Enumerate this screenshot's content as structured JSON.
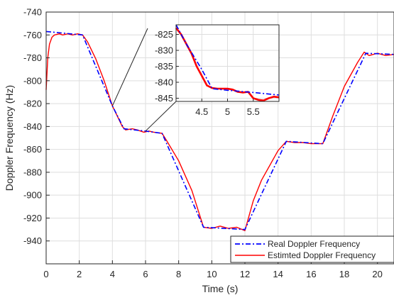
{
  "chart_data": {
    "type": "line",
    "xlabel": "Time (s)",
    "ylabel": "Doppler Frequency (Hz)",
    "xlim": [
      0,
      21
    ],
    "ylim": [
      -960,
      -740
    ],
    "xticks": [
      0,
      2,
      4,
      6,
      8,
      10,
      12,
      14,
      16,
      18,
      20
    ],
    "yticks": [
      -740,
      -760,
      -780,
      -800,
      -820,
      -840,
      -860,
      -880,
      -900,
      -920,
      -940
    ],
    "grid": true,
    "legend_position": "bottom-right",
    "series": [
      {
        "name": "Real Doppler Frequency",
        "color": "#0000ff",
        "style": "dash-dot",
        "x": [
          0,
          2.2,
          4.0,
          4.7,
          6.0,
          7.0,
          9.5,
          12.0,
          14.5,
          16.7,
          19.3,
          21
        ],
        "y": [
          -757,
          -760,
          -822,
          -842,
          -844,
          -846,
          -928,
          -930,
          -853,
          -855,
          -776,
          -777
        ]
      },
      {
        "name": "Estimted Doppler Frequency",
        "color": "#ff0000",
        "style": "solid",
        "x": [
          0,
          0.1,
          0.2,
          0.35,
          0.5,
          0.8,
          1.0,
          1.3,
          1.6,
          1.9,
          2.2,
          2.5,
          3.0,
          3.5,
          4.0,
          4.3,
          4.6,
          4.8,
          5.2,
          5.5,
          5.7,
          5.9,
          6.2,
          6.5,
          7.0,
          7.3,
          8.0,
          8.8,
          9.5,
          10.0,
          10.5,
          11.0,
          11.5,
          12.0,
          12.5,
          13.0,
          14.0,
          14.5,
          15.0,
          15.5,
          16.0,
          16.7,
          17.3,
          18.0,
          18.8,
          19.2,
          19.5,
          20.0,
          20.5,
          21
        ],
        "y": [
          -808,
          -780,
          -768,
          -762,
          -760,
          -759,
          -760,
          -759,
          -760,
          -759,
          -760,
          -766,
          -781,
          -800,
          -822,
          -831,
          -840,
          -843,
          -842,
          -843,
          -844,
          -845,
          -844,
          -845,
          -846,
          -853,
          -870,
          -896,
          -928,
          -929,
          -927,
          -929,
          -928,
          -931,
          -905,
          -887,
          -861,
          -853,
          -854,
          -854,
          -855,
          -855,
          -831,
          -805,
          -784,
          -775,
          -778,
          -776,
          -778,
          -777
        ]
      }
    ],
    "inset": {
      "xlim": [
        4,
        6
      ],
      "ylim": [
        -846,
        -822
      ],
      "xticks": [
        4.5,
        5,
        5.5
      ],
      "yticks": [
        -825,
        -830,
        -835,
        -840,
        -845
      ],
      "real": {
        "x": [
          4.0,
          4.2,
          4.5,
          4.7,
          5.0,
          5.5,
          6.0
        ],
        "y": [
          -822,
          -828,
          -836,
          -842,
          -842.5,
          -843.2,
          -844
        ]
      },
      "estimated": {
        "x": [
          4.0,
          4.1,
          4.2,
          4.3,
          4.4,
          4.5,
          4.6,
          4.7,
          4.8,
          5.0,
          5.1,
          5.2,
          5.3,
          5.4,
          5.5,
          5.6,
          5.7,
          5.8,
          5.9,
          6.0
        ],
        "y": [
          -823,
          -825,
          -828,
          -831,
          -835,
          -838,
          -841,
          -841.8,
          -842,
          -842,
          -842.3,
          -843,
          -843.2,
          -843,
          -845,
          -845.5,
          -845.7,
          -845,
          -844.5,
          -844.7
        ]
      }
    }
  }
}
